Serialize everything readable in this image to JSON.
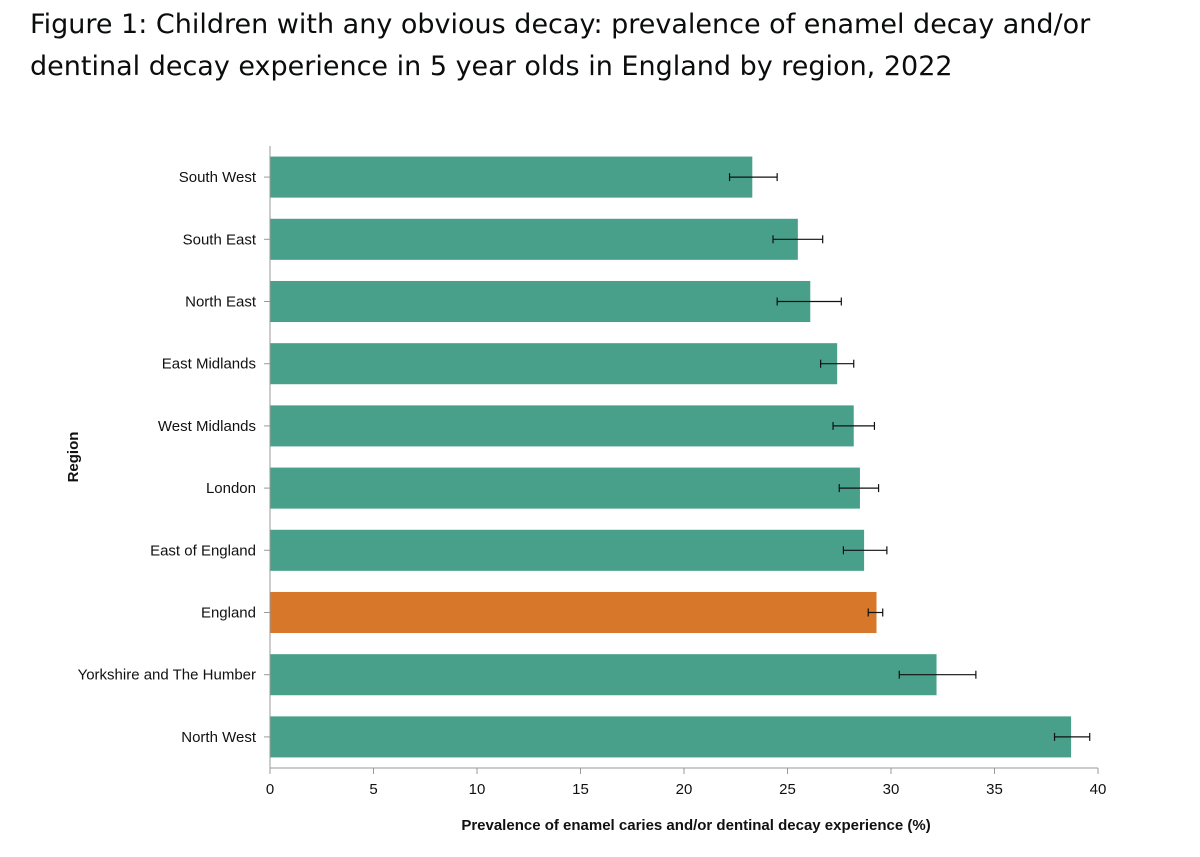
{
  "figure": {
    "title": "Figure 1: Children with any obvious decay: prevalence of enamel decay and/or dentinal decay experience in 5 year olds in England by region, 2022"
  },
  "colors": {
    "region_bar": "#48a08a",
    "england_bar": "#d6772a",
    "axis": "#999999",
    "error_bar": "#111111"
  },
  "chart_data": {
    "type": "bar",
    "orientation": "horizontal",
    "xlabel": "Prevalence of enamel caries and/or dentinal decay experience (%)",
    "ylabel": "Region",
    "xlim": [
      0,
      40
    ],
    "xticks": [
      0,
      5,
      10,
      15,
      20,
      25,
      30,
      35,
      40
    ],
    "grid": false,
    "error_bars": true,
    "categories": [
      "South West",
      "South East",
      "North East",
      "East Midlands",
      "West Midlands",
      "London",
      "East of England",
      "England",
      "Yorkshire and The Humber",
      "North West"
    ],
    "values": [
      23.3,
      25.5,
      26.1,
      27.4,
      28.2,
      28.5,
      28.7,
      29.3,
      32.2,
      38.7
    ],
    "ci_lower": [
      22.2,
      24.3,
      24.5,
      26.6,
      27.2,
      27.5,
      27.7,
      28.9,
      30.4,
      37.9
    ],
    "ci_upper": [
      24.5,
      26.7,
      27.6,
      28.2,
      29.2,
      29.4,
      29.8,
      29.6,
      34.1,
      39.6
    ],
    "highlight": "England"
  }
}
